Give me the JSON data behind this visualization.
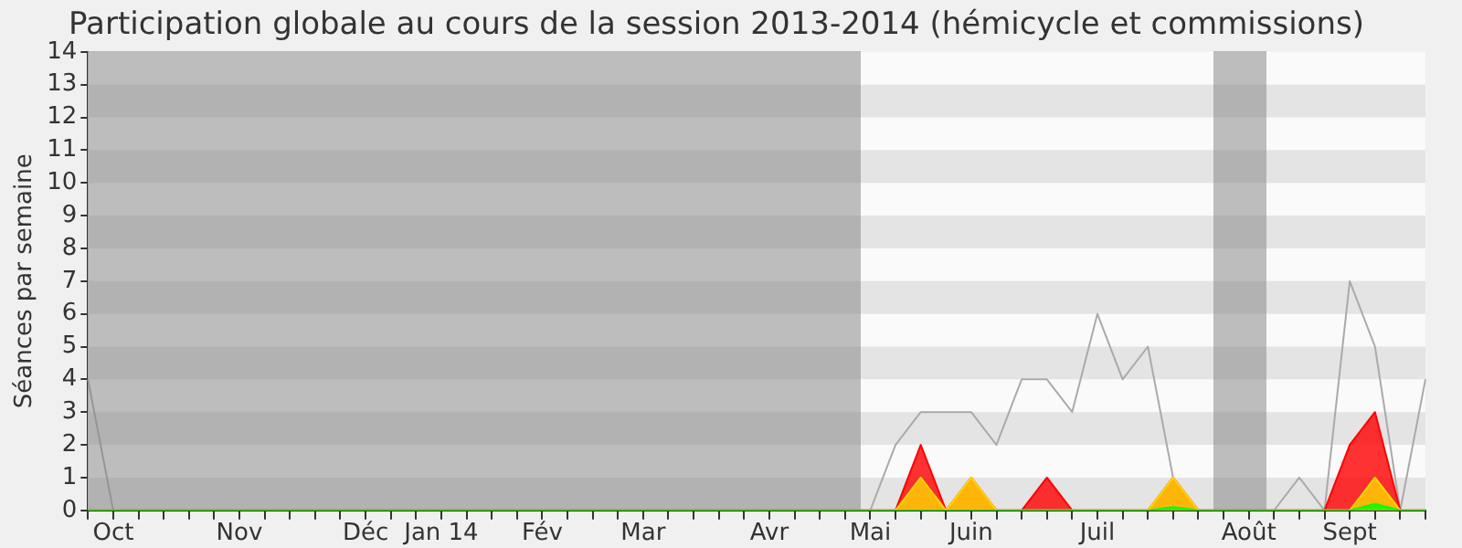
{
  "chart_data": {
    "type": "line",
    "title": "Participation globale au cours de la session 2013-2014 (hémicycle et commissions)",
    "ylabel": "Séances par semaine",
    "categories": [
      null,
      "Oct",
      null,
      null,
      null,
      null,
      "Nov",
      null,
      null,
      null,
      null,
      "Déc",
      null,
      null,
      "Jan 14",
      null,
      null,
      null,
      "Fév",
      null,
      null,
      null,
      "Mar",
      null,
      null,
      null,
      null,
      "Avr",
      null,
      null,
      null,
      "Mai",
      null,
      null,
      null,
      "Juin",
      null,
      null,
      null,
      null,
      "Juil",
      null,
      null,
      null,
      null,
      null,
      "Août",
      null,
      null,
      null,
      "Sept",
      null,
      null,
      null
    ],
    "series": [
      {
        "type": "line",
        "color": "#aaaaaa",
        "values": [
          4,
          0,
          0,
          0,
          0,
          0,
          0,
          0,
          0,
          0,
          0,
          0,
          0,
          0,
          0,
          0,
          0,
          0,
          0,
          0,
          0,
          0,
          0,
          0,
          0,
          0,
          0,
          0,
          0,
          0,
          0,
          0,
          2,
          3,
          3,
          3,
          2,
          4,
          4,
          3,
          6,
          4,
          5,
          1,
          0,
          0,
          0,
          0,
          1,
          0,
          7,
          5,
          0,
          4
        ]
      },
      {
        "type": "area",
        "color": "#ff0000",
        "values": [
          0,
          0,
          0,
          0,
          0,
          0,
          0,
          0,
          0,
          0,
          0,
          0,
          0,
          0,
          0,
          0,
          0,
          0,
          0,
          0,
          0,
          0,
          0,
          0,
          0,
          0,
          0,
          0,
          0,
          0,
          0,
          0,
          0,
          2,
          0,
          1,
          0,
          0,
          1,
          0,
          0,
          0,
          0,
          1,
          0,
          0,
          0,
          0,
          0,
          0,
          2,
          3,
          0,
          0
        ]
      },
      {
        "type": "area",
        "color": "#ffd700",
        "values": [
          0,
          0,
          0,
          0,
          0,
          0,
          0,
          0,
          0,
          0,
          0,
          0,
          0,
          0,
          0,
          0,
          0,
          0,
          0,
          0,
          0,
          0,
          0,
          0,
          0,
          0,
          0,
          0,
          0,
          0,
          0,
          0,
          0,
          1,
          0,
          1,
          0,
          0,
          0,
          0,
          0,
          0,
          0,
          1,
          0,
          0,
          0,
          0,
          0,
          0,
          0,
          1,
          0,
          0
        ]
      },
      {
        "type": "area",
        "color": "#00ff00",
        "values": [
          0,
          0,
          0,
          0,
          0,
          0,
          0,
          0,
          0,
          0,
          0,
          0,
          0,
          0,
          0,
          0,
          0,
          0,
          0,
          0,
          0,
          0,
          0,
          0,
          0,
          0,
          0,
          0,
          0,
          0,
          0,
          0,
          0,
          0,
          0,
          0,
          0,
          0,
          0,
          0,
          0,
          0,
          0,
          0.1,
          0,
          0,
          0,
          0,
          0,
          0,
          0,
          0.2,
          0,
          0
        ]
      }
    ],
    "ylim": [
      0,
      14
    ],
    "yticks": [
      0,
      1,
      2,
      3,
      4,
      5,
      6,
      7,
      8,
      9,
      10,
      11,
      12,
      13,
      14
    ]
  }
}
